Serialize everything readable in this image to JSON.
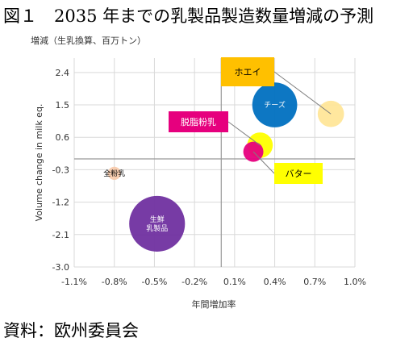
{
  "title": "図１　2035 年までの乳製品製造数量増減の予測",
  "source": "資料：欧州委員会",
  "colors": {
    "bg": "#ffffff",
    "grid": "#d9d9d9",
    "axis": "#999999",
    "leader": "#7f7f7f"
  },
  "chart_data": {
    "type": "scatter",
    "ylabel_top": "増減（生乳換算、百万トン）",
    "ylabel": "Volume change in milk eq.",
    "xlabel": "年間増加率",
    "xlim": [
      -0.011,
      0.01
    ],
    "ylim": [
      -3.0,
      2.8
    ],
    "x_ticks": [
      -0.011,
      -0.008,
      -0.005,
      -0.002,
      0.001,
      0.004,
      0.007,
      0.01
    ],
    "x_tick_labels": [
      "-1.1%",
      "-0.8%",
      "-0.5%",
      "-0.2%",
      "0.1%",
      "0.4%",
      "0.7%",
      "1.0%"
    ],
    "y_ticks": [
      2.4,
      1.5,
      0.6,
      -0.3,
      -1.2,
      -2.1,
      -3.0
    ],
    "y_tick_labels": [
      "2.4",
      "1.5",
      "0.6",
      "-0.3",
      "-1.2",
      "-2.1",
      "-3.0"
    ],
    "grid": true,
    "series": [
      {
        "name": "チーズ",
        "x": 0.004,
        "y": 1.5,
        "size_rel": 0.58,
        "color": "#0070c0",
        "label_inside": true,
        "label_color": "#ffffff"
      },
      {
        "name": "ホエイ",
        "x": 0.0082,
        "y": 1.25,
        "size_rel": 0.34,
        "color": "#ffe699",
        "label_inside": false
      },
      {
        "name": "脱脂粉乳",
        "x": 0.0029,
        "y": 0.38,
        "size_rel": 0.33,
        "color": "#ffff00",
        "label_inside": false
      },
      {
        "name": "バター",
        "x": 0.0024,
        "y": 0.2,
        "size_rel": 0.26,
        "color": "#e6007e",
        "label_inside": false
      },
      {
        "name": "全粉乳",
        "x": -0.008,
        "y": -0.4,
        "size_rel": 0.17,
        "color": "#f8cbad",
        "label_inside": true,
        "label_color": "#000000"
      },
      {
        "name": "生鮮\n乳製品",
        "x": -0.0048,
        "y": -1.8,
        "size_rel": 0.72,
        "color": "#7030a0",
        "label_inside": true,
        "label_color": "#ffffff"
      }
    ],
    "callouts": [
      {
        "text": "ホエイ",
        "target": "ホエイ",
        "box_color": "#ffc000",
        "text_color": "#000000"
      },
      {
        "text": "脱脂粉乳",
        "target": "脱脂粉乳",
        "box_color": "#e6007e",
        "text_color": "#ffffff"
      },
      {
        "text": "バター",
        "target": "バター",
        "box_color": "#ffff00",
        "text_color": "#000000"
      }
    ]
  }
}
